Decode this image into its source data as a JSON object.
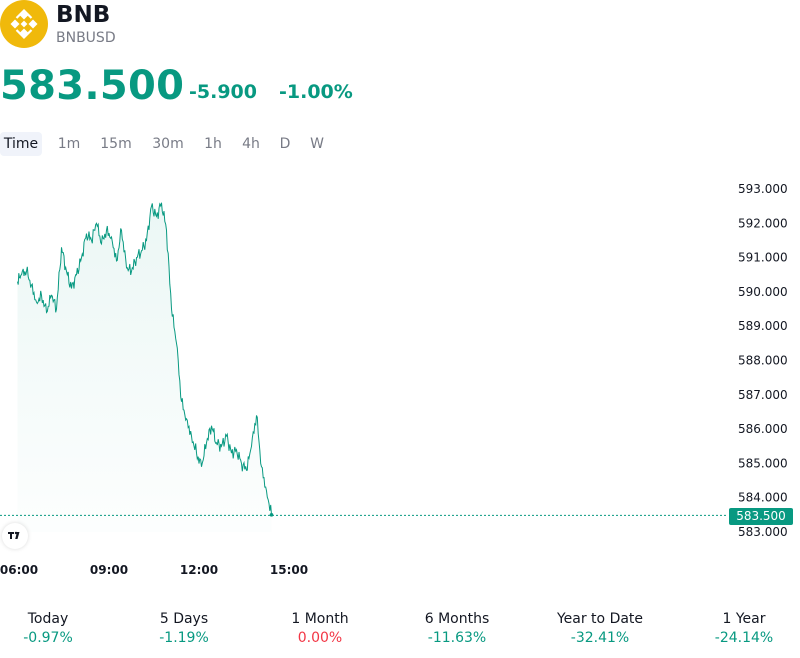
{
  "header": {
    "logo_icon": "bnb-logo-icon",
    "symbol": "BNB",
    "pair": "BNBUSD"
  },
  "quote": {
    "price": "583.500",
    "change": "-5.900",
    "change_pct": "-1.00%",
    "color": "#089981"
  },
  "timeframes": [
    {
      "label": "Time",
      "active": true
    },
    {
      "label": "1m",
      "active": false
    },
    {
      "label": "15m",
      "active": false
    },
    {
      "label": "30m",
      "active": false
    },
    {
      "label": "1h",
      "active": false
    },
    {
      "label": "4h",
      "active": false
    },
    {
      "label": "D",
      "active": false
    },
    {
      "label": "W",
      "active": false
    }
  ],
  "chart_data": {
    "type": "area",
    "series": [
      {
        "name": "",
        "color": "#089981"
      }
    ],
    "x_ticks": [
      "06:00",
      "09:00",
      "12:00",
      "15:00"
    ],
    "y_ticks": [
      "593.000",
      "592.000",
      "591.000",
      "590.000",
      "589.000",
      "588.000",
      "587.000",
      "586.000",
      "585.000",
      "584.000",
      "583.000"
    ],
    "ylim": [
      583,
      593
    ],
    "last_price_label": "583.500",
    "last_price": 583.5,
    "points": [
      {
        "x": "05:57",
        "y": 590.3
      },
      {
        "x": "06:05",
        "y": 590.5
      },
      {
        "x": "06:15",
        "y": 590.6
      },
      {
        "x": "06:25",
        "y": 590.2
      },
      {
        "x": "06:35",
        "y": 589.7
      },
      {
        "x": "06:45",
        "y": 589.9
      },
      {
        "x": "06:55",
        "y": 589.4
      },
      {
        "x": "07:05",
        "y": 589.9
      },
      {
        "x": "07:15",
        "y": 589.5
      },
      {
        "x": "07:25",
        "y": 591.3
      },
      {
        "x": "07:35",
        "y": 590.6
      },
      {
        "x": "07:45",
        "y": 590.1
      },
      {
        "x": "07:55",
        "y": 590.5
      },
      {
        "x": "08:05",
        "y": 591.0
      },
      {
        "x": "08:15",
        "y": 591.7
      },
      {
        "x": "08:25",
        "y": 591.5
      },
      {
        "x": "08:35",
        "y": 592.0
      },
      {
        "x": "08:45",
        "y": 591.4
      },
      {
        "x": "08:55",
        "y": 591.8
      },
      {
        "x": "09:05",
        "y": 591.6
      },
      {
        "x": "09:15",
        "y": 590.9
      },
      {
        "x": "09:25",
        "y": 591.8
      },
      {
        "x": "09:35",
        "y": 590.7
      },
      {
        "x": "09:45",
        "y": 590.6
      },
      {
        "x": "09:55",
        "y": 591.0
      },
      {
        "x": "10:05",
        "y": 591.2
      },
      {
        "x": "10:15",
        "y": 591.5
      },
      {
        "x": "10:25",
        "y": 592.5
      },
      {
        "x": "10:35",
        "y": 592.2
      },
      {
        "x": "10:45",
        "y": 592.6
      },
      {
        "x": "10:55",
        "y": 591.8
      },
      {
        "x": "11:05",
        "y": 589.5
      },
      {
        "x": "11:15",
        "y": 588.5
      },
      {
        "x": "11:25",
        "y": 586.8
      },
      {
        "x": "11:35",
        "y": 586.3
      },
      {
        "x": "11:45",
        "y": 585.8
      },
      {
        "x": "11:55",
        "y": 585.3
      },
      {
        "x": "12:05",
        "y": 584.9
      },
      {
        "x": "12:15",
        "y": 585.6
      },
      {
        "x": "12:25",
        "y": 586.1
      },
      {
        "x": "12:35",
        "y": 585.6
      },
      {
        "x": "12:45",
        "y": 585.5
      },
      {
        "x": "12:55",
        "y": 585.8
      },
      {
        "x": "13:05",
        "y": 585.3
      },
      {
        "x": "13:15",
        "y": 585.4
      },
      {
        "x": "13:25",
        "y": 585.0
      },
      {
        "x": "13:35",
        "y": 584.8
      },
      {
        "x": "13:45",
        "y": 585.5
      },
      {
        "x": "13:55",
        "y": 586.4
      },
      {
        "x": "14:05",
        "y": 584.9
      },
      {
        "x": "14:15",
        "y": 584.2
      },
      {
        "x": "14:25",
        "y": 583.5
      }
    ]
  },
  "performance": [
    {
      "label": "Today",
      "value": "-0.97%",
      "color": "#089981"
    },
    {
      "label": "5 Days",
      "value": "-1.19%",
      "color": "#089981"
    },
    {
      "label": "1 Month",
      "value": "0.00%",
      "color": "#f23645"
    },
    {
      "label": "6 Months",
      "value": "-11.63%",
      "color": "#089981"
    },
    {
      "label": "Year to Date",
      "value": "-32.41%",
      "color": "#089981"
    },
    {
      "label": "1 Year",
      "value": "-24.14%",
      "color": "#089981"
    }
  ]
}
